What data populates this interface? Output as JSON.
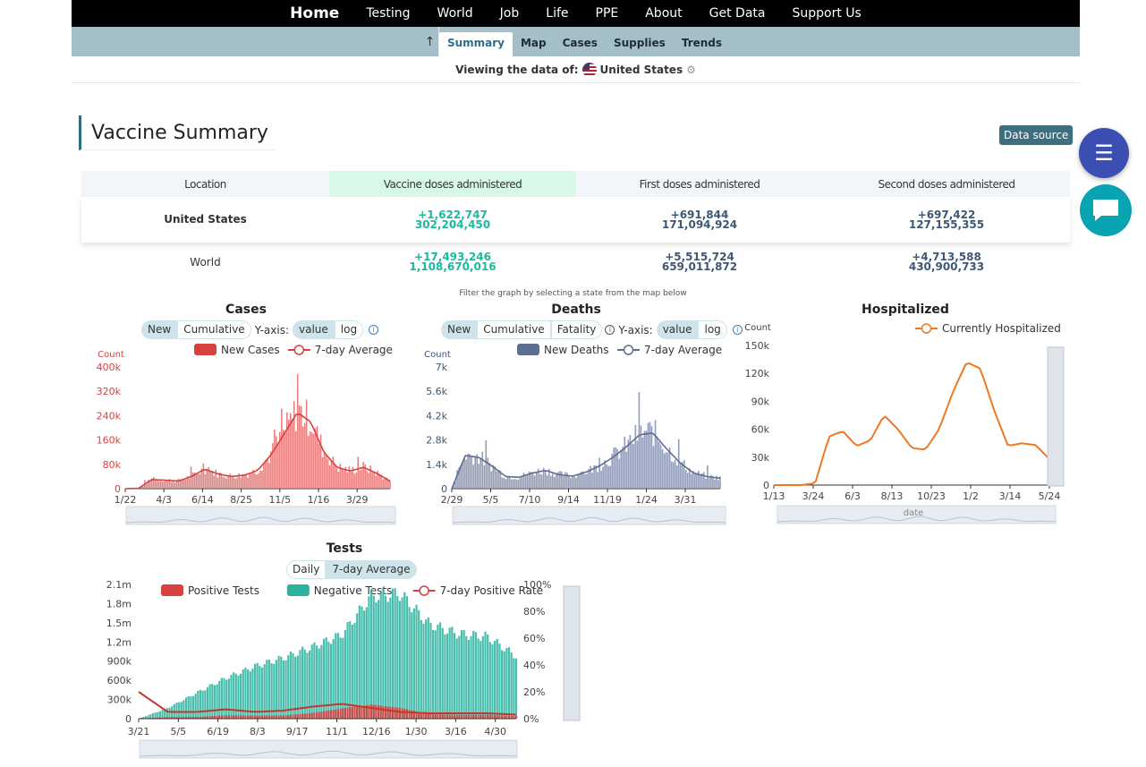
{
  "nav": {
    "items": [
      "Home",
      "Testing",
      "World",
      "Job",
      "Life",
      "PPE",
      "About",
      "Get Data",
      "Support Us"
    ]
  },
  "subnav": {
    "up_icon": "arrow-up-icon",
    "tabs": [
      "Summary",
      "Map",
      "Cases",
      "Supplies",
      "Trends"
    ],
    "active": "Summary"
  },
  "viewing": {
    "label": "Viewing the data of:",
    "country": "United States",
    "settings_icon": "gear-icon"
  },
  "section": {
    "title": "Vaccine Summary",
    "data_source": "Data source"
  },
  "fab": {
    "menu_icon": "menu-icon",
    "chat_icon": "chat-icon"
  },
  "vaccine_table": {
    "headers": [
      "Location",
      "Vaccine doses administered",
      "First doses administered",
      "Second doses administered"
    ],
    "rows": [
      {
        "location": "United States",
        "total_delta": "+1,622,747",
        "total": "302,204,450",
        "first_delta": "+691,844",
        "first": "171,094,924",
        "second_delta": "+697,422",
        "second": "127,155,355"
      },
      {
        "location": "World",
        "total_delta": "+17,493,246",
        "total": "1,108,670,016",
        "first_delta": "+5,515,724",
        "first": "659,011,872",
        "second_delta": "+4,713,588",
        "second": "430,900,733"
      }
    ]
  },
  "filter_note": "Filter the graph by selecting a state from the map below",
  "colors": {
    "cases": "#d94040",
    "deaths": "#5e6e8f",
    "hosp": "#f07822",
    "tests_neg": "#2bb3a0",
    "tests_pos": "#d94040",
    "teal": "#1db8a0",
    "navy": "#3d5774"
  },
  "chart_data": [
    {
      "type": "area",
      "title": "Cases",
      "controls": [
        "New",
        "Cumulative"
      ],
      "yaxis_label": "Y-axis:",
      "yaxis_options": [
        "value",
        "log"
      ],
      "legend": [
        "New Cases",
        "7-day Average"
      ],
      "ylabel": "Count",
      "yticks": [
        "0",
        "80k",
        "160k",
        "240k",
        "320k",
        "400k"
      ],
      "ylim": [
        0,
        400000
      ],
      "xticks": [
        "1/22",
        "4/3",
        "6/14",
        "8/25",
        "11/5",
        "1/16",
        "3/29"
      ],
      "series": [
        {
          "name": "7-day Average",
          "values": [
            0,
            1000,
            30000,
            28000,
            25000,
            40000,
            64000,
            48000,
            40000,
            44000,
            60000,
            110000,
            180000,
            250000,
            220000,
            120000,
            70000,
            58000,
            70000,
            50000,
            25000
          ]
        }
      ]
    },
    {
      "type": "area",
      "title": "Deaths",
      "controls": [
        "New",
        "Cumulative",
        "Fatality"
      ],
      "yaxis_label": "Y-axis:",
      "yaxis_options": [
        "value",
        "log"
      ],
      "legend": [
        "New Deaths",
        "7-day Average"
      ],
      "ylabel": "Count",
      "yticks": [
        "0",
        "1.4k",
        "2.8k",
        "4.2k",
        "5.6k",
        "7k"
      ],
      "ylim": [
        0,
        7000
      ],
      "xticks": [
        "2/29",
        "5/5",
        "7/10",
        "9/14",
        "11/19",
        "1/24",
        "3/31"
      ],
      "series": [
        {
          "name": "7-day Average",
          "values": [
            0,
            1900,
            1800,
            1300,
            700,
            650,
            900,
            1050,
            800,
            720,
            950,
            1300,
            1800,
            2400,
            3100,
            3200,
            2300,
            1500,
            900,
            700,
            600
          ]
        }
      ]
    },
    {
      "type": "line",
      "title": "Hospitalized",
      "legend": [
        "Currently Hospitalized"
      ],
      "ylabel": "Count",
      "xlabel": "date",
      "yticks": [
        "0",
        "30k",
        "60k",
        "90k",
        "120k",
        "150k"
      ],
      "ylim": [
        0,
        150000
      ],
      "xticks": [
        "1/13",
        "3/24",
        "6/3",
        "8/13",
        "10/23",
        "1/2",
        "3/14",
        "5/24"
      ],
      "series": [
        {
          "name": "Currently Hospitalized",
          "values": [
            0,
            0,
            0,
            2000,
            52000,
            58000,
            42000,
            48000,
            75000,
            60000,
            40000,
            38000,
            60000,
            100000,
            132000,
            125000,
            80000,
            42000,
            45000,
            43000,
            28000
          ]
        }
      ]
    },
    {
      "type": "area",
      "title": "Tests",
      "controls": [
        "Daily",
        "7-day Average"
      ],
      "legend": [
        "Positive Tests",
        "Negative Tests",
        "7-day Positive Rate"
      ],
      "yticks": [
        "0",
        "300k",
        "600k",
        "900k",
        "1.2m",
        "1.5m",
        "1.8m",
        "2.1m"
      ],
      "y2ticks": [
        "0%",
        "20%",
        "40%",
        "60%",
        "80%",
        "100%"
      ],
      "ylim": [
        0,
        2100000
      ],
      "xticks": [
        "3/21",
        "5/5",
        "6/19",
        "8/3",
        "9/17",
        "11/1",
        "12/16",
        "1/30",
        "3/16",
        "4/30"
      ],
      "series": [
        {
          "name": "Negative Tests",
          "values": [
            0,
            150000,
            400000,
            620000,
            820000,
            960000,
            1100000,
            1230000,
            1800000,
            1900000,
            1500000,
            1350000,
            1300000,
            1000000
          ]
        },
        {
          "name": "Positive Tests",
          "values": [
            0,
            25000,
            28000,
            52000,
            48000,
            50000,
            90000,
            160000,
            220000,
            170000,
            70000,
            60000,
            60000,
            40000
          ]
        },
        {
          "name": "7-day Positive Rate",
          "values": [
            0.2,
            0.05,
            0.05,
            0.07,
            0.05,
            0.06,
            0.09,
            0.11,
            0.08,
            0.05,
            0.04,
            0.04,
            0.04,
            0.03
          ]
        }
      ]
    }
  ]
}
